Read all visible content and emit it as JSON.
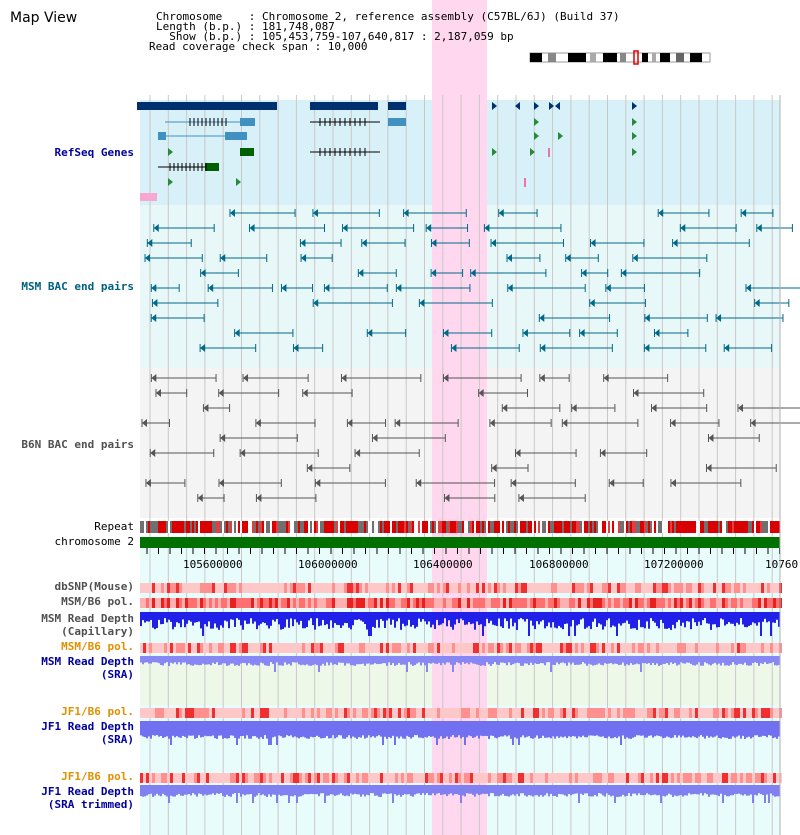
{
  "header": {
    "title": "Map View",
    "chromosome_line": "Chromosome    : Chromosome 2, reference assembly (C57BL/6J) (Build 37)",
    "length_line": "Length (b.p.) : 181,748,087",
    "show_line": "  Show (b.p.) : 105,453,759-107,640,817 : 2,187,059 bp",
    "coverage_line": "Read coverage check span : 10,000"
  },
  "tracks": {
    "refseq": {
      "label": "RefSeq Genes",
      "color": "#00009c"
    },
    "msm_bac": {
      "label": "MSM BAC end pairs",
      "color": "#006080"
    },
    "b6n_bac": {
      "label": "B6N BAC end pairs",
      "color": "#505050"
    },
    "repeat": {
      "label": "Repeat"
    },
    "chromosome": {
      "label": "chromosome 2"
    },
    "dbsnp": {
      "label": "dbSNP(Mouse)"
    },
    "msm_b6_pol_1": {
      "label": "MSM/B6 pol."
    },
    "msm_read_depth_cap": {
      "label_1": "MSM Read Depth",
      "label_2": "(Capillary)"
    },
    "msm_b6_pol_2": {
      "label": "MSM/B6 pol."
    },
    "msm_read_depth_sra": {
      "label_1": "MSM Read Depth",
      "label_2": "(SRA)"
    },
    "jf1_b6_pol_1": {
      "label": "JF1/B6 pol."
    },
    "jf1_read_depth_sra": {
      "label_1": "JF1 Read Depth",
      "label_2": "(SRA)"
    },
    "jf1_b6_pol_2": {
      "label": "JF1/B6 pol."
    },
    "jf1_read_depth_trim": {
      "label_1": "JF1 Read Depth",
      "label_2": "(SRA trimmed)"
    }
  },
  "axis": {
    "ticks": [
      "105600000",
      "106000000",
      "106400000",
      "106800000",
      "107200000",
      "10760"
    ]
  },
  "colors": {
    "highlight": "#ffd8f0",
    "refseq_bg": "#d8f0f8",
    "msm_bg": "#e8f8f8",
    "b6n_bg": "#f4f4f4",
    "gene_dark": "#003070",
    "gene_mid": "#4090c0",
    "gene_green": "#006000",
    "chromosome_bar": "#007000",
    "depth_blue": "#3030e0",
    "depth_light": "#8080f0",
    "pol_label_orange": "#e09000",
    "sra_label_blue": "#0000a0"
  }
}
